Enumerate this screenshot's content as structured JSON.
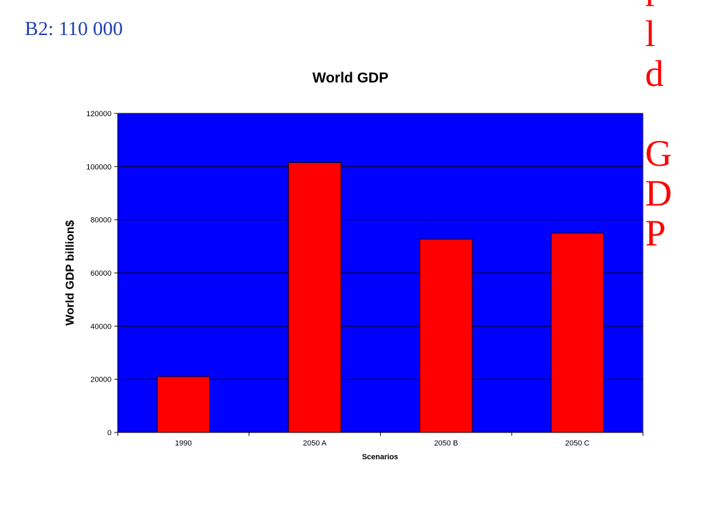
{
  "slide": {
    "caption": "B2: 110 000",
    "vertical_letters": [
      "r",
      "l",
      "d",
      "",
      "G",
      "D",
      "P"
    ]
  },
  "colors": {
    "plot_background": "#0000ff",
    "bar": "#ff0000",
    "caption": "#1f3fb3",
    "vertical_text": "#ff0000"
  },
  "chart_data": {
    "type": "bar",
    "title": "World GDP",
    "xlabel": "Scenarios",
    "ylabel": "World GDP billion$",
    "categories": [
      "1990",
      "2050 A",
      "2050 B",
      "2050 C"
    ],
    "values": [
      21000,
      101500,
      72700,
      75000
    ],
    "ylim": [
      0,
      120000
    ],
    "yticks": [
      "0",
      "20000",
      "40000",
      "60000",
      "80000",
      "100000",
      "120000"
    ],
    "grid": true,
    "legend": "none"
  }
}
